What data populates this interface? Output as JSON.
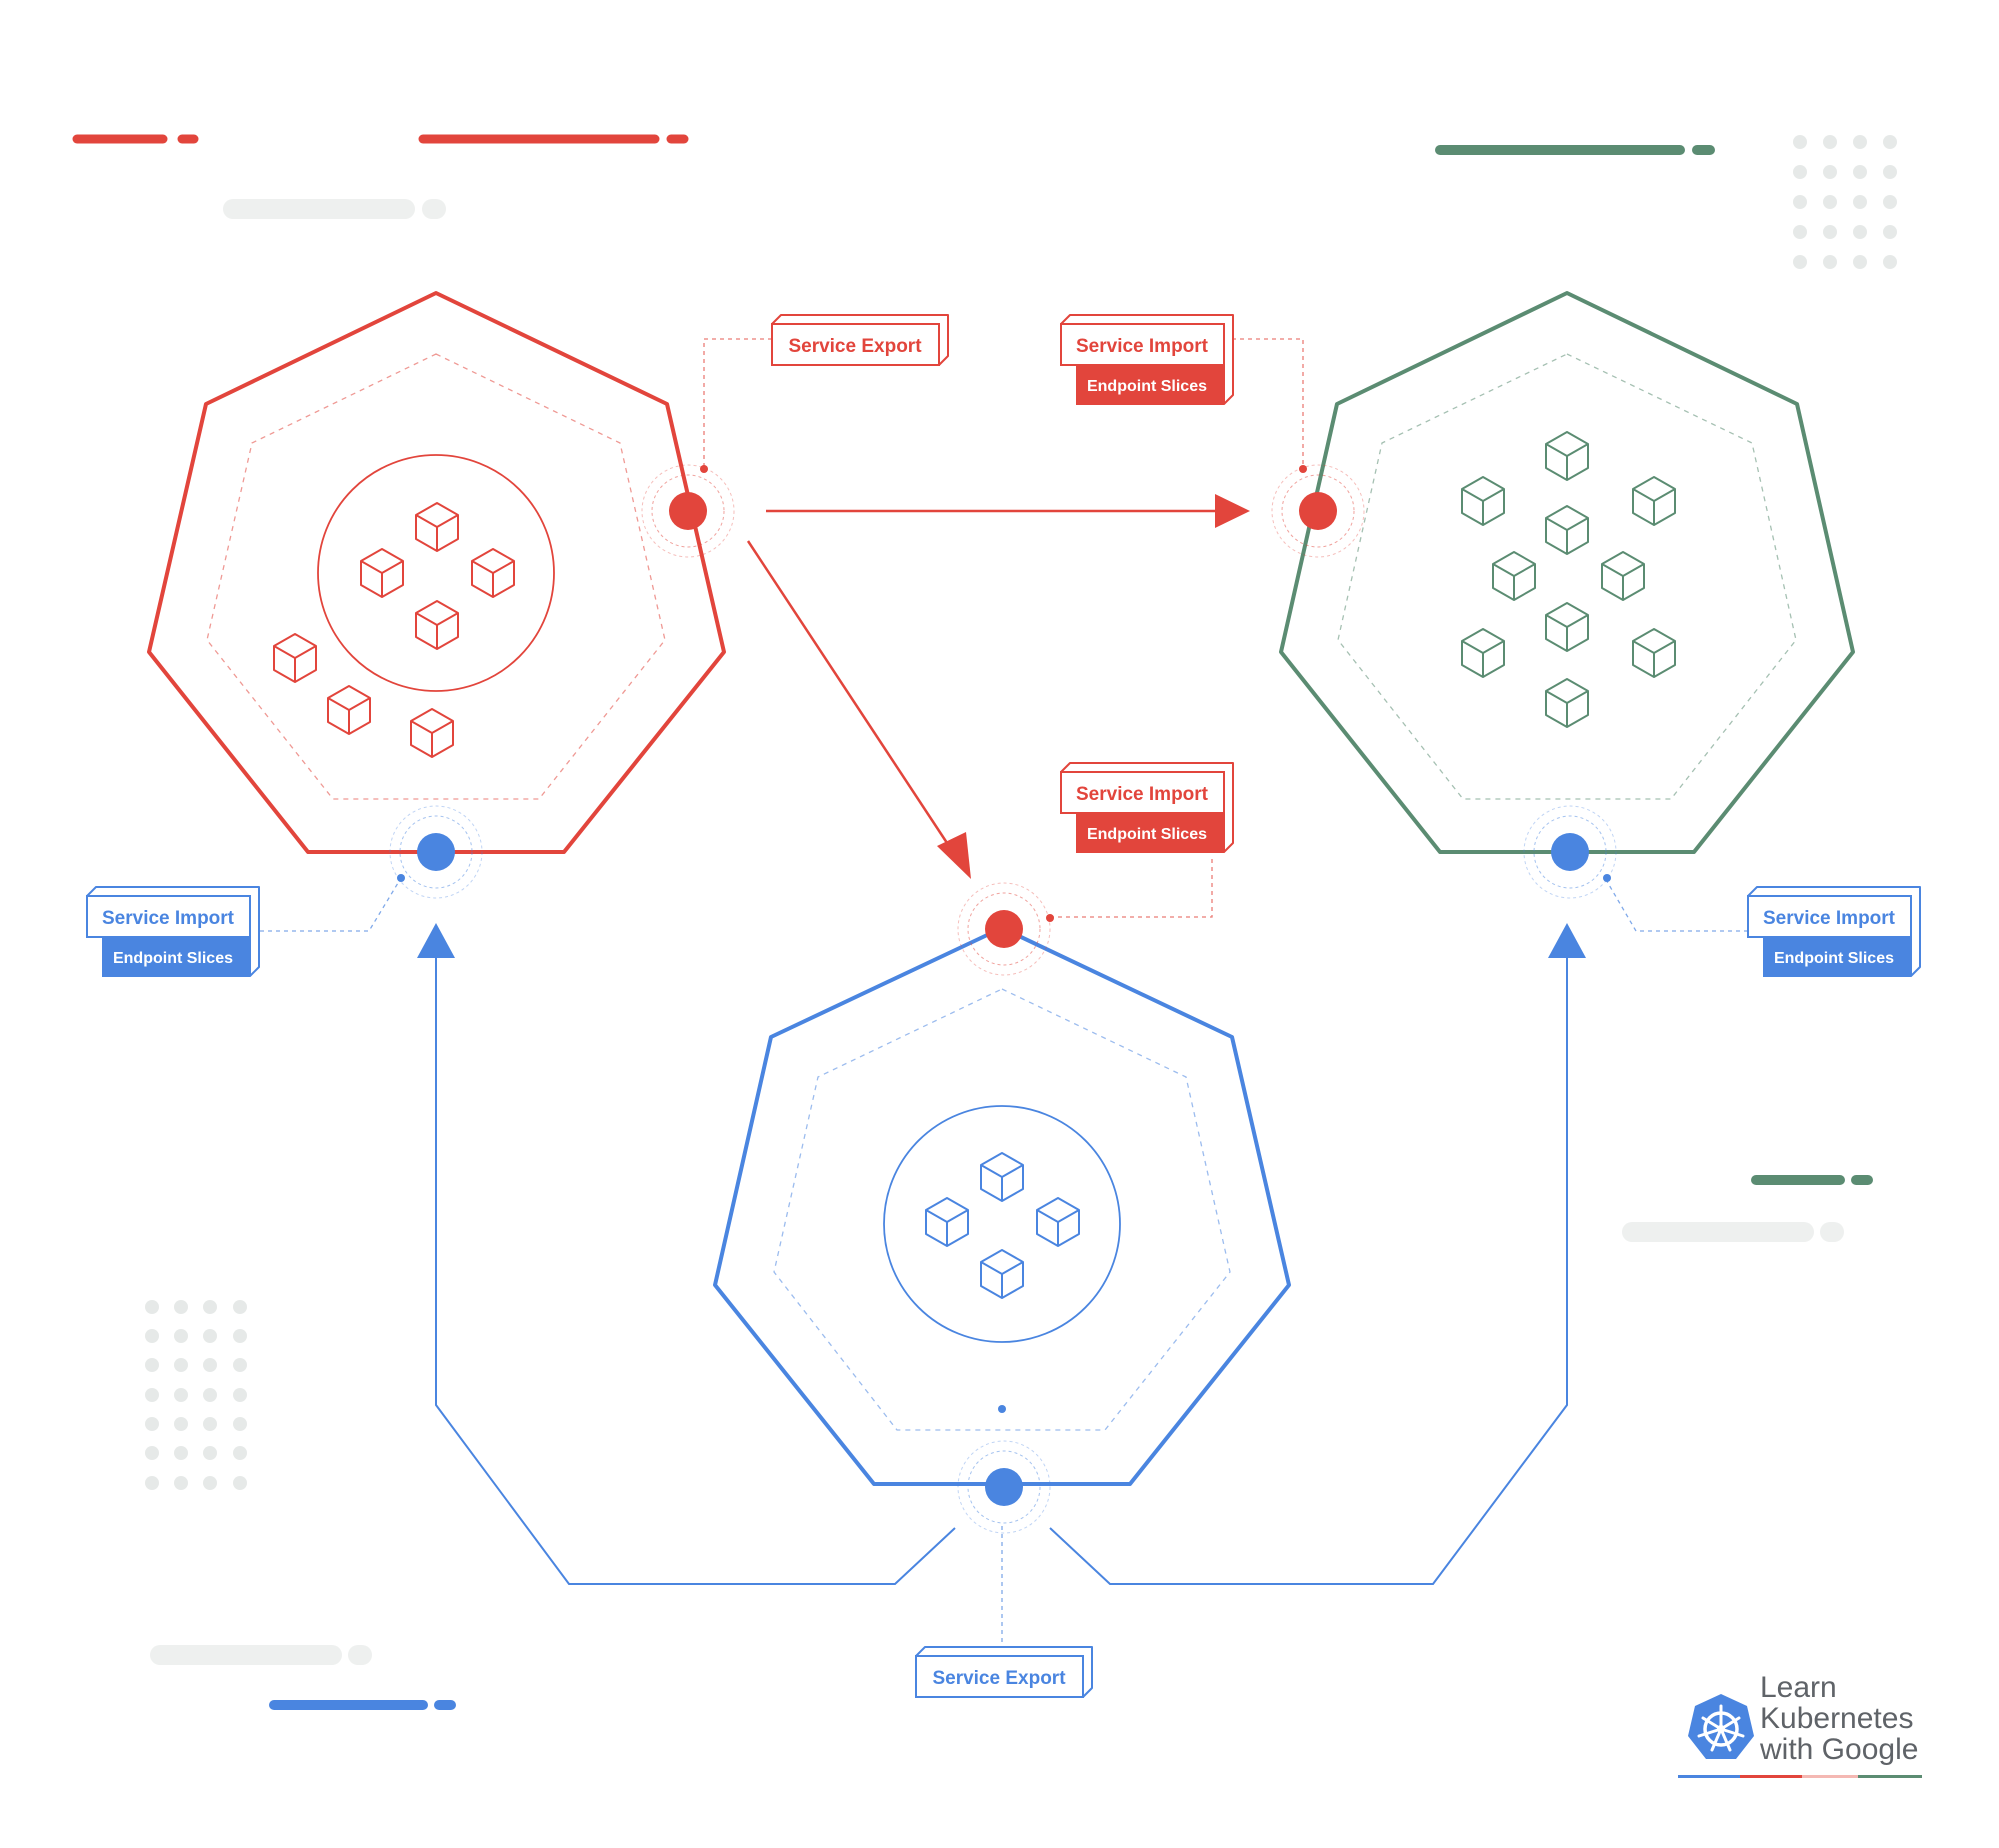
{
  "colors": {
    "red": "#e2453c",
    "blue": "#4a85e0",
    "green": "#5b8c72",
    "grey_deco": "#eef0ef",
    "dots": "#e6e9e8"
  },
  "labels": {
    "service_export": "Service Export",
    "service_import": "Service Import",
    "endpoint_slices": "Endpoint Slices"
  },
  "clusters": [
    {
      "name": "red-cluster",
      "color": "red",
      "pods": 7
    },
    {
      "name": "green-cluster",
      "color": "green",
      "pods": 10
    },
    {
      "name": "blue-cluster",
      "color": "blue",
      "pods": 4
    }
  ],
  "connections": [
    {
      "from": "red-cluster",
      "to": "green-cluster",
      "kind": "service-export"
    },
    {
      "from": "red-cluster",
      "to": "blue-cluster",
      "kind": "service-export"
    },
    {
      "from": "blue-cluster",
      "to": "red-cluster",
      "kind": "service-export"
    },
    {
      "from": "blue-cluster",
      "to": "green-cluster",
      "kind": "service-export"
    }
  ],
  "logo": {
    "line1": "Learn",
    "line2": "Kubernetes",
    "line3": "with Google",
    "icon": "kubernetes-helm-icon"
  }
}
